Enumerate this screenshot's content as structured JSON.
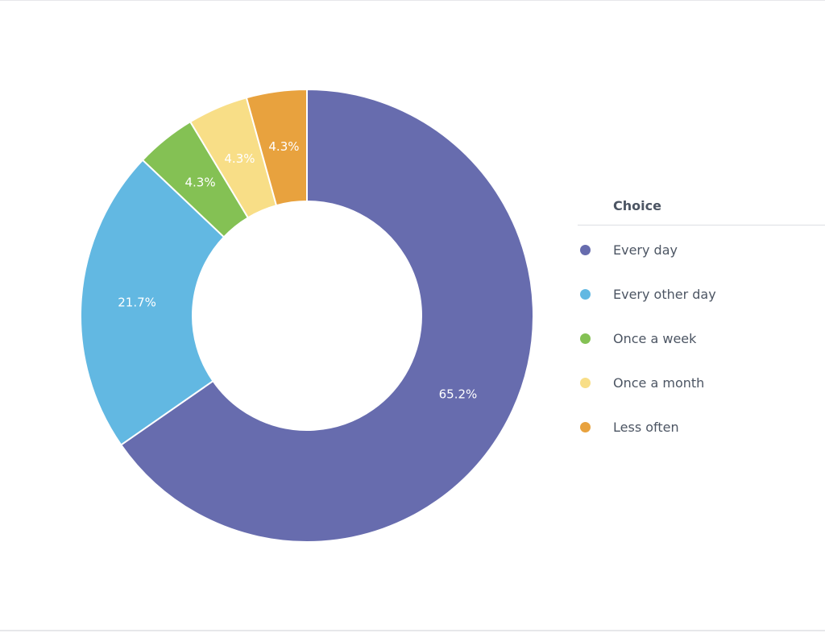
{
  "chart_data": {
    "type": "pie",
    "donut": true,
    "categories": [
      "Every day",
      "Every other day",
      "Once a week",
      "Once a month",
      "Less often"
    ],
    "values": [
      65.2,
      21.7,
      4.3,
      4.3,
      4.3
    ],
    "value_labels": [
      "65.2%",
      "21.7%",
      "4.3%",
      "4.3%",
      "4.3%"
    ],
    "colors": [
      "#676cae",
      "#62b8e2",
      "#84c154",
      "#f8de87",
      "#e8a23e"
    ],
    "legend": {
      "title": "Choice",
      "placement": "right"
    }
  }
}
